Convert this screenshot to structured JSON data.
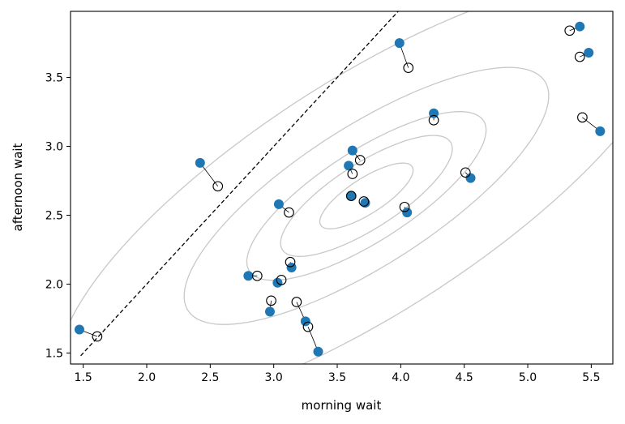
{
  "chart_data": {
    "type": "scatter",
    "title": "",
    "xlabel": "morning wait",
    "ylabel": "afternoon wait",
    "xlim": [
      1.4,
      5.67
    ],
    "ylim": [
      1.42,
      3.98
    ],
    "xticks": [
      1.5,
      2.0,
      2.5,
      3.0,
      3.5,
      4.0,
      4.5,
      5.0,
      5.5
    ],
    "yticks": [
      1.5,
      2.0,
      2.5,
      3.0,
      3.5
    ],
    "grid": false,
    "colors": {
      "observed": "#1f77b4",
      "estimate": "#000000",
      "contour": "#c8c8c8",
      "identity_line": "#000000"
    },
    "identity_line": [
      [
        1.48,
        1.48
      ],
      [
        3.98,
        3.98
      ]
    ],
    "contours": {
      "center": [
        3.73,
        2.64
      ],
      "sd": [
        0.8,
        0.52
      ],
      "rho": 0.78,
      "levels": [
        0.1,
        0.3,
        0.5,
        0.8,
        0.99
      ]
    },
    "points": [
      {
        "obs": [
          1.47,
          1.67
        ],
        "est": [
          1.61,
          1.62
        ]
      },
      {
        "obs": [
          2.42,
          2.88
        ],
        "est": [
          2.56,
          2.71
        ]
      },
      {
        "obs": [
          2.8,
          2.06
        ],
        "est": [
          2.87,
          2.06
        ]
      },
      {
        "obs": [
          2.97,
          1.8
        ],
        "est": [
          2.98,
          1.88
        ]
      },
      {
        "obs": [
          3.03,
          2.01
        ],
        "est": [
          3.06,
          2.03
        ]
      },
      {
        "obs": [
          3.04,
          2.58
        ],
        "est": [
          3.12,
          2.52
        ]
      },
      {
        "obs": [
          3.14,
          2.12
        ],
        "est": [
          3.13,
          2.16
        ]
      },
      {
        "obs": [
          3.25,
          1.73
        ],
        "est": [
          3.18,
          1.87
        ]
      },
      {
        "obs": [
          3.35,
          1.51
        ],
        "est": [
          3.27,
          1.69
        ]
      },
      {
        "obs": [
          3.59,
          2.86
        ],
        "est": [
          3.62,
          2.8
        ]
      },
      {
        "obs": [
          3.61,
          2.64
        ],
        "est": [
          3.61,
          2.64
        ]
      },
      {
        "obs": [
          3.62,
          2.97
        ],
        "est": [
          3.68,
          2.9
        ]
      },
      {
        "obs": [
          3.72,
          2.59
        ],
        "est": [
          3.71,
          2.6
        ]
      },
      {
        "obs": [
          3.99,
          3.75
        ],
        "est": [
          4.06,
          3.57
        ]
      },
      {
        "obs": [
          4.05,
          2.52
        ],
        "est": [
          4.03,
          2.56
        ]
      },
      {
        "obs": [
          4.26,
          3.24
        ],
        "est": [
          4.26,
          3.19
        ]
      },
      {
        "obs": [
          4.55,
          2.77
        ],
        "est": [
          4.51,
          2.81
        ]
      },
      {
        "obs": [
          5.41,
          3.87
        ],
        "est": [
          5.33,
          3.84
        ]
      },
      {
        "obs": [
          5.48,
          3.68
        ],
        "est": [
          5.41,
          3.65
        ]
      },
      {
        "obs": [
          5.57,
          3.11
        ],
        "est": [
          5.43,
          3.21
        ]
      }
    ]
  }
}
